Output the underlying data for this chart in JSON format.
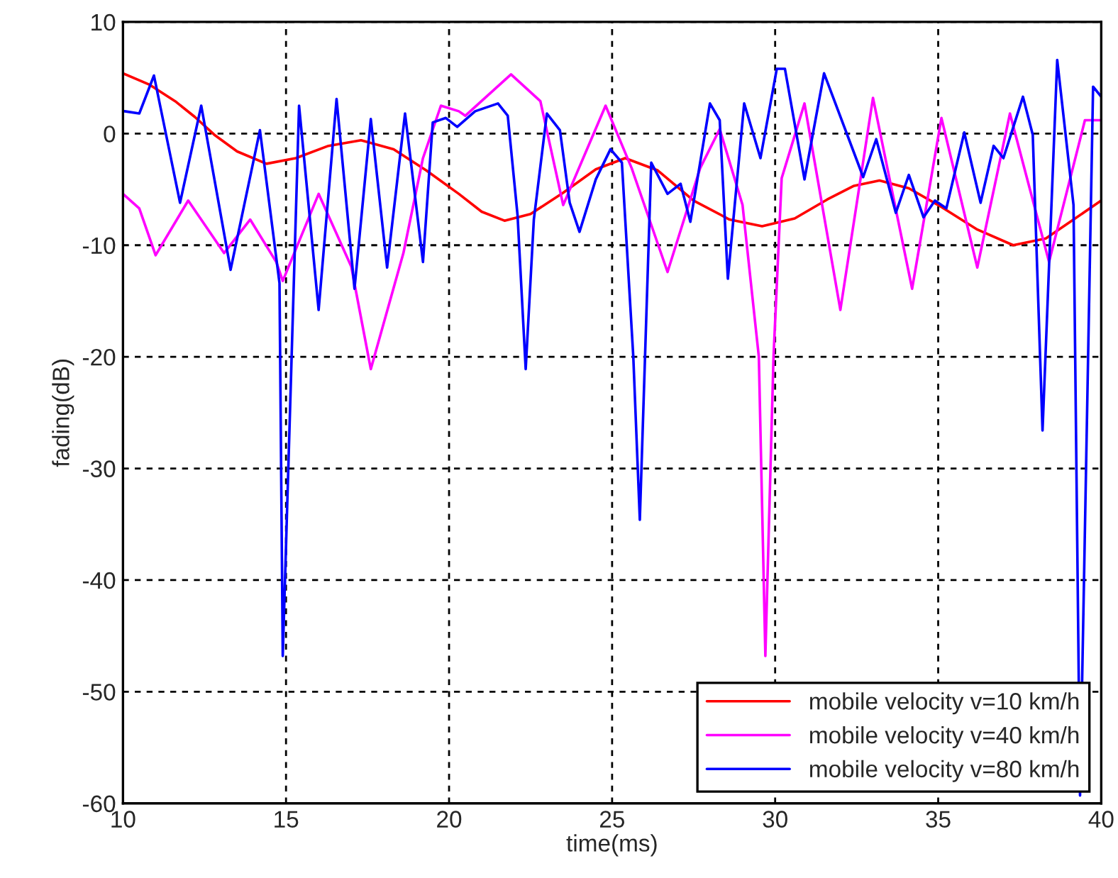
{
  "chart_data": {
    "type": "line",
    "xlabel": "time(ms)",
    "ylabel": "fading(dB)",
    "xlim": [
      10,
      40
    ],
    "ylim": [
      -60,
      10
    ],
    "xticks": [
      10,
      15,
      20,
      25,
      30,
      35,
      40
    ],
    "yticks": [
      -60,
      -50,
      -40,
      -30,
      -20,
      -10,
      0,
      10
    ],
    "grid": true,
    "legend": "bottom right",
    "line_style": "solid",
    "marker": "none",
    "series": [
      {
        "name": "mobile velocity v=10 km/h",
        "color": "#ff0000",
        "x": [
          10,
          10.8,
          11.6,
          12.2,
          12.8,
          13.5,
          14.4,
          15.3,
          16.3,
          17.3,
          18.3,
          19.3,
          20.3,
          21.0,
          21.7,
          22.5,
          23.5,
          24.5,
          25.4,
          26.4,
          27.5,
          28.6,
          29.6,
          30.6,
          31.6,
          32.4,
          33.2,
          34.1,
          35.0,
          36.2,
          37.3,
          38.3,
          39.2,
          40
        ],
        "values": [
          5.4,
          4.4,
          2.9,
          1.5,
          -0.1,
          -1.6,
          -2.7,
          -2.2,
          -1.1,
          -0.6,
          -1.4,
          -3.3,
          -5.4,
          -7.0,
          -7.8,
          -7.2,
          -5.3,
          -3.2,
          -2.2,
          -3.3,
          -6.0,
          -7.7,
          -8.3,
          -7.6,
          -5.9,
          -4.7,
          -4.2,
          -4.9,
          -6.4,
          -8.6,
          -10.0,
          -9.4,
          -7.6,
          -6.0
        ]
      },
      {
        "name": "mobile velocity v=40 km/h",
        "color": "#ff00ff",
        "x": [
          10,
          10.5,
          11.0,
          12.0,
          13.1,
          13.9,
          14.7,
          14.9,
          16.0,
          17.0,
          17.6,
          18.6,
          19.2,
          19.75,
          20.3,
          20.5,
          21.9,
          22.8,
          23.5,
          24.8,
          25.6,
          26.7,
          27.7,
          28.3,
          29.0,
          29.5,
          29.7,
          29.95,
          30.2,
          30.9,
          32.0,
          33.0,
          34.2,
          35.1,
          36.2,
          37.2,
          38.4,
          39.5,
          40
        ],
        "values": [
          -5.4,
          -6.7,
          -10.9,
          -6.0,
          -10.7,
          -7.7,
          -11.5,
          -13.2,
          -5.4,
          -11.9,
          -21.1,
          -10.7,
          -2.2,
          2.5,
          2.0,
          1.6,
          5.3,
          2.9,
          -6.4,
          2.5,
          -3.1,
          -12.4,
          -3.1,
          0.4,
          -6.4,
          -20.0,
          -46.8,
          -20.0,
          -4.0,
          2.7,
          -15.8,
          3.2,
          -13.9,
          1.4,
          -12.0,
          1.8,
          -11.5,
          1.2,
          1.2
        ]
      },
      {
        "name": "mobile velocity v=80 km/h",
        "color": "#0000ff",
        "x": [
          10.05,
          10.5,
          10.95,
          11.75,
          12.4,
          13.3,
          14.2,
          14.8,
          14.9,
          15.4,
          16.0,
          16.55,
          17.1,
          17.6,
          18.1,
          18.65,
          19.2,
          19.5,
          19.9,
          20.25,
          20.8,
          21.5,
          21.8,
          22.1,
          22.35,
          22.6,
          23.0,
          23.4,
          23.7,
          24.0,
          24.5,
          24.95,
          25.3,
          25.65,
          25.85,
          26.2,
          26.7,
          27.1,
          27.4,
          27.7,
          28.0,
          28.3,
          28.55,
          29.05,
          29.55,
          30.05,
          30.3,
          30.9,
          31.5,
          32.7,
          33.1,
          33.7,
          34.1,
          34.55,
          34.9,
          35.25,
          35.8,
          36.3,
          36.7,
          37.0,
          37.6,
          37.9,
          38.2,
          38.65,
          39.15,
          39.35,
          39.75,
          40
        ],
        "values": [
          2.0,
          1.8,
          5.2,
          -6.2,
          2.5,
          -12.2,
          0.3,
          -13.4,
          -46.8,
          2.5,
          -15.8,
          3.1,
          -13.9,
          1.3,
          -12.0,
          1.8,
          -11.5,
          1.0,
          1.4,
          0.6,
          2.0,
          2.7,
          1.6,
          -7.3,
          -21.1,
          -7.7,
          1.8,
          0.3,
          -6.2,
          -8.8,
          -4.1,
          -1.4,
          -2.6,
          -20.0,
          -34.6,
          -2.6,
          -5.4,
          -4.5,
          -7.9,
          -2.6,
          2.7,
          1.2,
          -13.0,
          2.7,
          -2.2,
          5.8,
          5.8,
          -4.1,
          5.4,
          -3.9,
          -0.5,
          -7.1,
          -3.7,
          -7.5,
          -6.0,
          -6.7,
          0.1,
          -6.2,
          -1.1,
          -2.2,
          3.3,
          -0.1,
          -26.6,
          6.6,
          -6.4,
          -59.3,
          4.2,
          3.3
        ]
      }
    ]
  }
}
